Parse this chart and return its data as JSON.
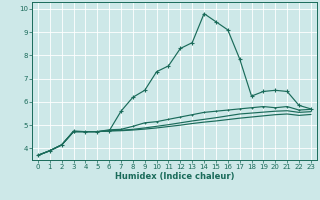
{
  "xlabel": "Humidex (Indice chaleur)",
  "xlim": [
    -0.5,
    23.5
  ],
  "ylim": [
    3.5,
    10.3
  ],
  "xticks": [
    0,
    1,
    2,
    3,
    4,
    5,
    6,
    7,
    8,
    9,
    10,
    11,
    12,
    13,
    14,
    15,
    16,
    17,
    18,
    19,
    20,
    21,
    22,
    23
  ],
  "yticks": [
    4,
    5,
    6,
    7,
    8,
    9,
    10
  ],
  "background_color": "#cde8e8",
  "grid_color": "#ffffff",
  "line_color": "#1a6b5a",
  "line1": [
    3.7,
    3.9,
    4.15,
    4.75,
    4.72,
    4.72,
    4.75,
    5.6,
    6.2,
    6.5,
    7.3,
    7.55,
    8.3,
    8.55,
    9.8,
    9.45,
    9.1,
    7.85,
    6.25,
    6.45,
    6.5,
    6.45,
    5.85,
    5.7
  ],
  "line2": [
    3.7,
    3.9,
    4.15,
    4.72,
    4.72,
    4.72,
    4.8,
    4.82,
    4.95,
    5.1,
    5.15,
    5.25,
    5.35,
    5.45,
    5.55,
    5.6,
    5.65,
    5.7,
    5.75,
    5.8,
    5.75,
    5.8,
    5.65,
    5.68
  ],
  "line3": [
    3.7,
    3.9,
    4.15,
    4.72,
    4.72,
    4.72,
    4.76,
    4.78,
    4.82,
    4.88,
    4.95,
    5.02,
    5.1,
    5.18,
    5.25,
    5.32,
    5.4,
    5.48,
    5.52,
    5.56,
    5.6,
    5.62,
    5.55,
    5.58
  ],
  "line4": [
    3.7,
    3.9,
    4.15,
    4.72,
    4.72,
    4.72,
    4.75,
    4.76,
    4.79,
    4.83,
    4.88,
    4.94,
    5.0,
    5.07,
    5.13,
    5.18,
    5.24,
    5.3,
    5.35,
    5.4,
    5.45,
    5.48,
    5.42,
    5.46
  ]
}
